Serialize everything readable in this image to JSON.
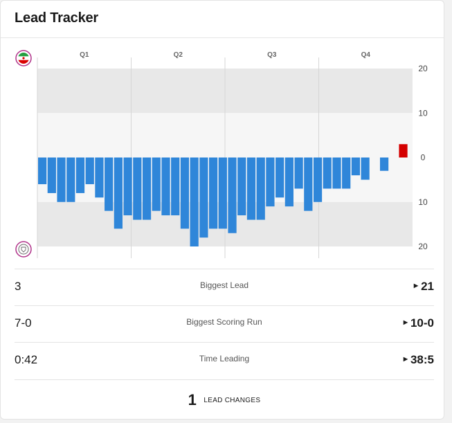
{
  "header": {
    "title": "Lead Tracker"
  },
  "colors": {
    "away": "#2f86d9",
    "home": "#d40000",
    "band_dark": "#e8e8e8",
    "band_light": "#f6f6f6"
  },
  "teams": {
    "top_logo": "iran-flag-logo",
    "bottom_logo": "team-crest-logo"
  },
  "chart_data": {
    "type": "bar",
    "quarters": [
      "Q1",
      "Q2",
      "Q3",
      "Q4"
    ],
    "ylim": [
      -20,
      20
    ],
    "y_ticks": [
      "20",
      "10",
      "0",
      "10",
      "20"
    ],
    "values": [
      -6,
      -8,
      -10,
      -10,
      -8,
      -6,
      -9,
      -12,
      -16,
      -13,
      -14,
      -14,
      -12,
      -13,
      -13,
      -16,
      -20,
      -18,
      -16,
      -16,
      -17,
      -13,
      -14,
      -14,
      -11,
      -9,
      -11,
      -7,
      -12,
      -10,
      -7,
      -7,
      -7,
      -4,
      -5,
      0,
      -3,
      0,
      3
    ]
  },
  "stats": [
    {
      "left": "3",
      "label": "Biggest Lead",
      "right": "21"
    },
    {
      "left": "7-0",
      "label": "Biggest Scoring Run",
      "right": "10-0"
    },
    {
      "left": "0:42",
      "label": "Time Leading",
      "right": "38:5"
    }
  ],
  "footer": {
    "count": "1",
    "label": "LEAD CHANGES"
  }
}
